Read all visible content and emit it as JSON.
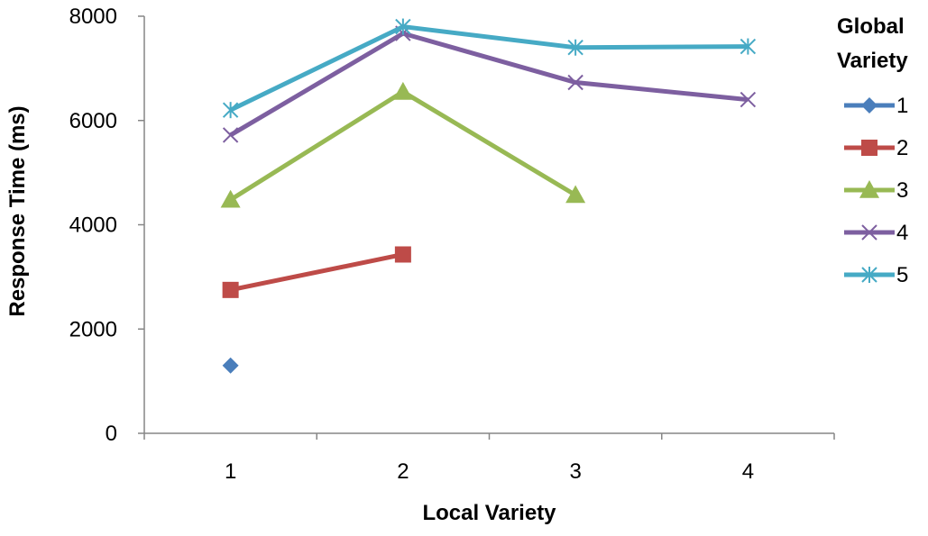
{
  "chart_data": {
    "type": "line",
    "title": "",
    "xlabel": "Local Variety",
    "ylabel": "Response Time (ms)",
    "x": [
      1,
      2,
      3,
      4
    ],
    "x_tick_labels": [
      "1",
      "2",
      "3",
      "4"
    ],
    "ylim": [
      0,
      8000
    ],
    "y_ticks": [
      0,
      2000,
      4000,
      6000,
      8000
    ],
    "y_tick_labels": [
      "0",
      "2000",
      "4000",
      "6000",
      "8000"
    ],
    "grid": false,
    "legend": {
      "title_lines": [
        "Global",
        "Variety"
      ],
      "placement": "right"
    },
    "series": [
      {
        "name": "1",
        "color": "#4a7ebb",
        "marker": "diamond",
        "values": [
          1300,
          null,
          null,
          null
        ]
      },
      {
        "name": "2",
        "color": "#be4b48",
        "marker": "square",
        "values": [
          2750,
          3430,
          null,
          null
        ]
      },
      {
        "name": "3",
        "color": "#98b954",
        "marker": "triangle",
        "values": [
          4480,
          6550,
          4570,
          null
        ]
      },
      {
        "name": "4",
        "color": "#7d5fa0",
        "marker": "x",
        "values": [
          5720,
          7670,
          6730,
          6400
        ]
      },
      {
        "name": "5",
        "color": "#46aac5",
        "marker": "asterisk",
        "values": [
          6200,
          7800,
          7400,
          7420
        ]
      }
    ]
  }
}
